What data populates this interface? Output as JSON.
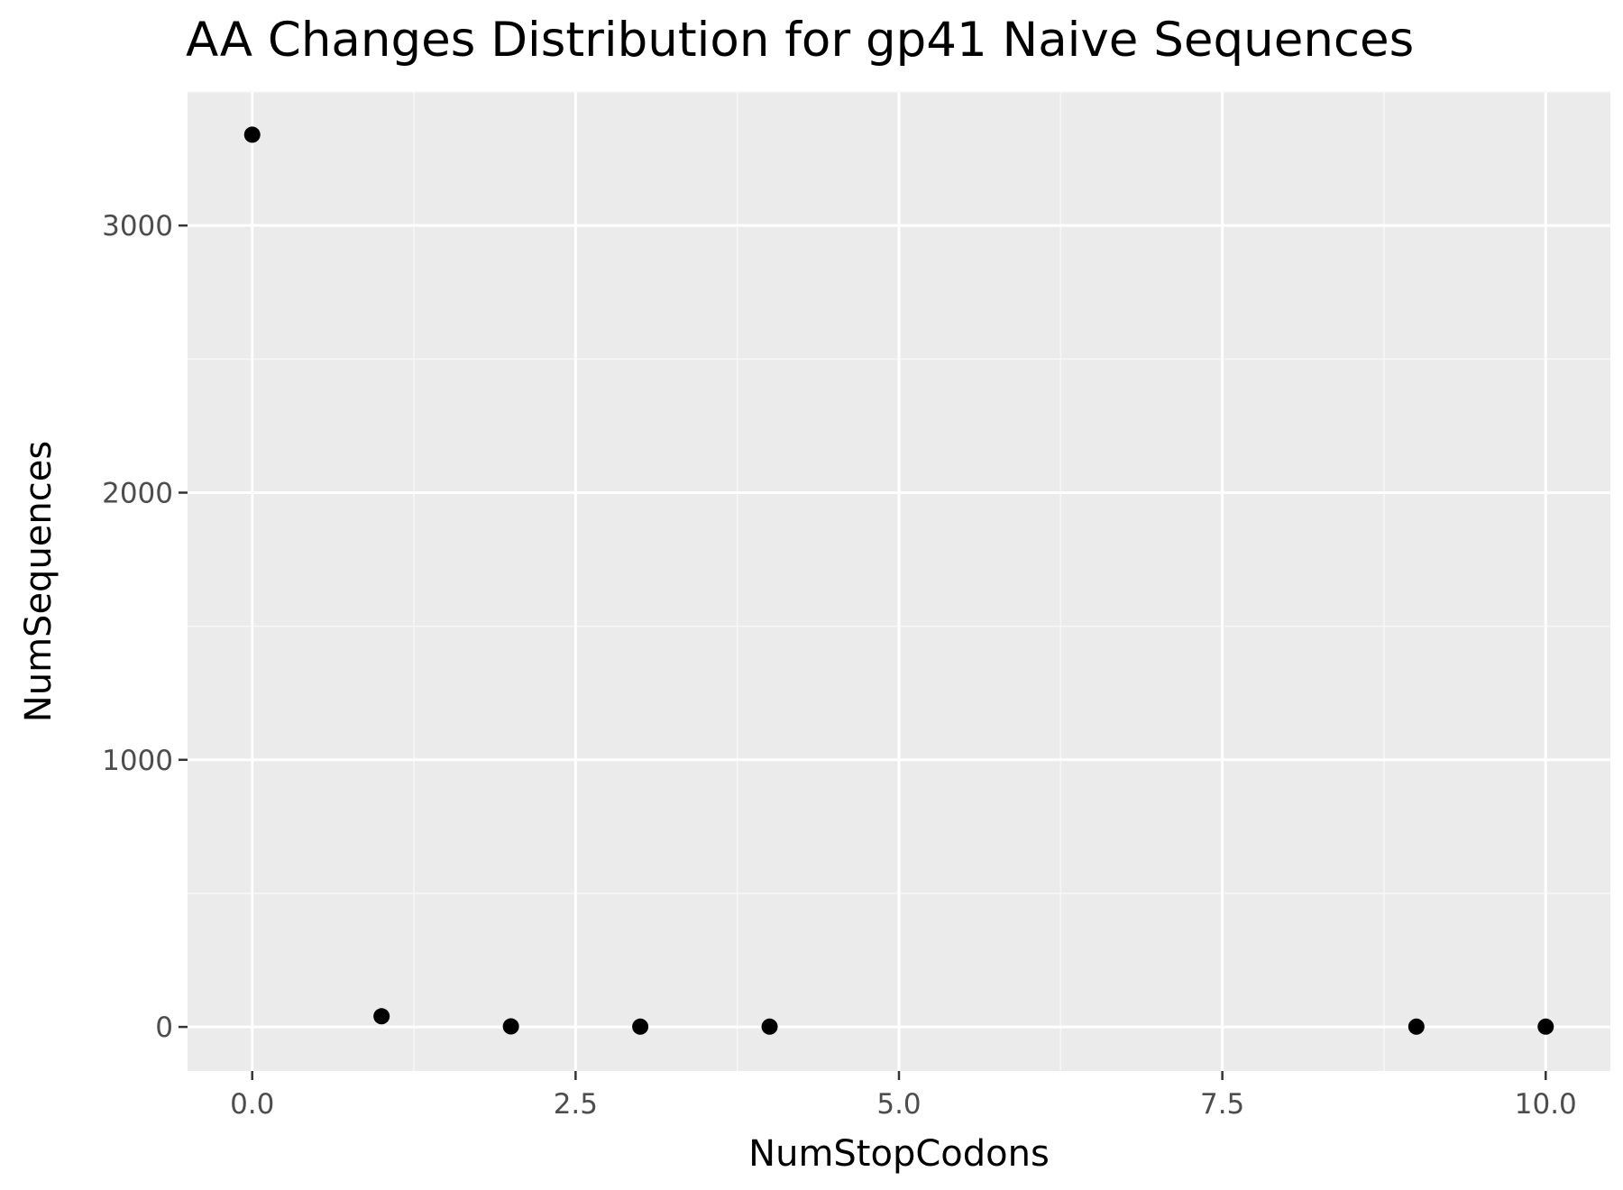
{
  "chart_data": {
    "type": "scatter",
    "title": "AA Changes Distribution for gp41 Naive Sequences",
    "xlabel": "NumStopCodons",
    "ylabel": "NumSequences",
    "x": [
      0,
      1,
      2,
      3,
      4,
      9,
      10
    ],
    "y": [
      3340,
      40,
      2,
      1,
      1,
      1,
      1
    ],
    "xlim": [
      -0.5,
      10.5
    ],
    "ylim": [
      -165,
      3500
    ],
    "x_ticks": [
      0,
      2.5,
      5,
      7.5,
      10
    ],
    "x_tick_labels": [
      "0.0",
      "2.5",
      "5.0",
      "7.5",
      "10.0"
    ],
    "y_ticks": [
      0,
      1000,
      2000,
      3000
    ],
    "y_tick_labels": [
      "0",
      "1000",
      "2000",
      "3000"
    ],
    "grid": true,
    "legend": "none",
    "colors": {
      "panel_background": "#ebebeb",
      "grid_major": "#ffffff",
      "grid_minor": "#f7f7f7",
      "points": "#000000",
      "tick_labels": "#4d4d4d",
      "axis_ticks": "#333333"
    }
  }
}
